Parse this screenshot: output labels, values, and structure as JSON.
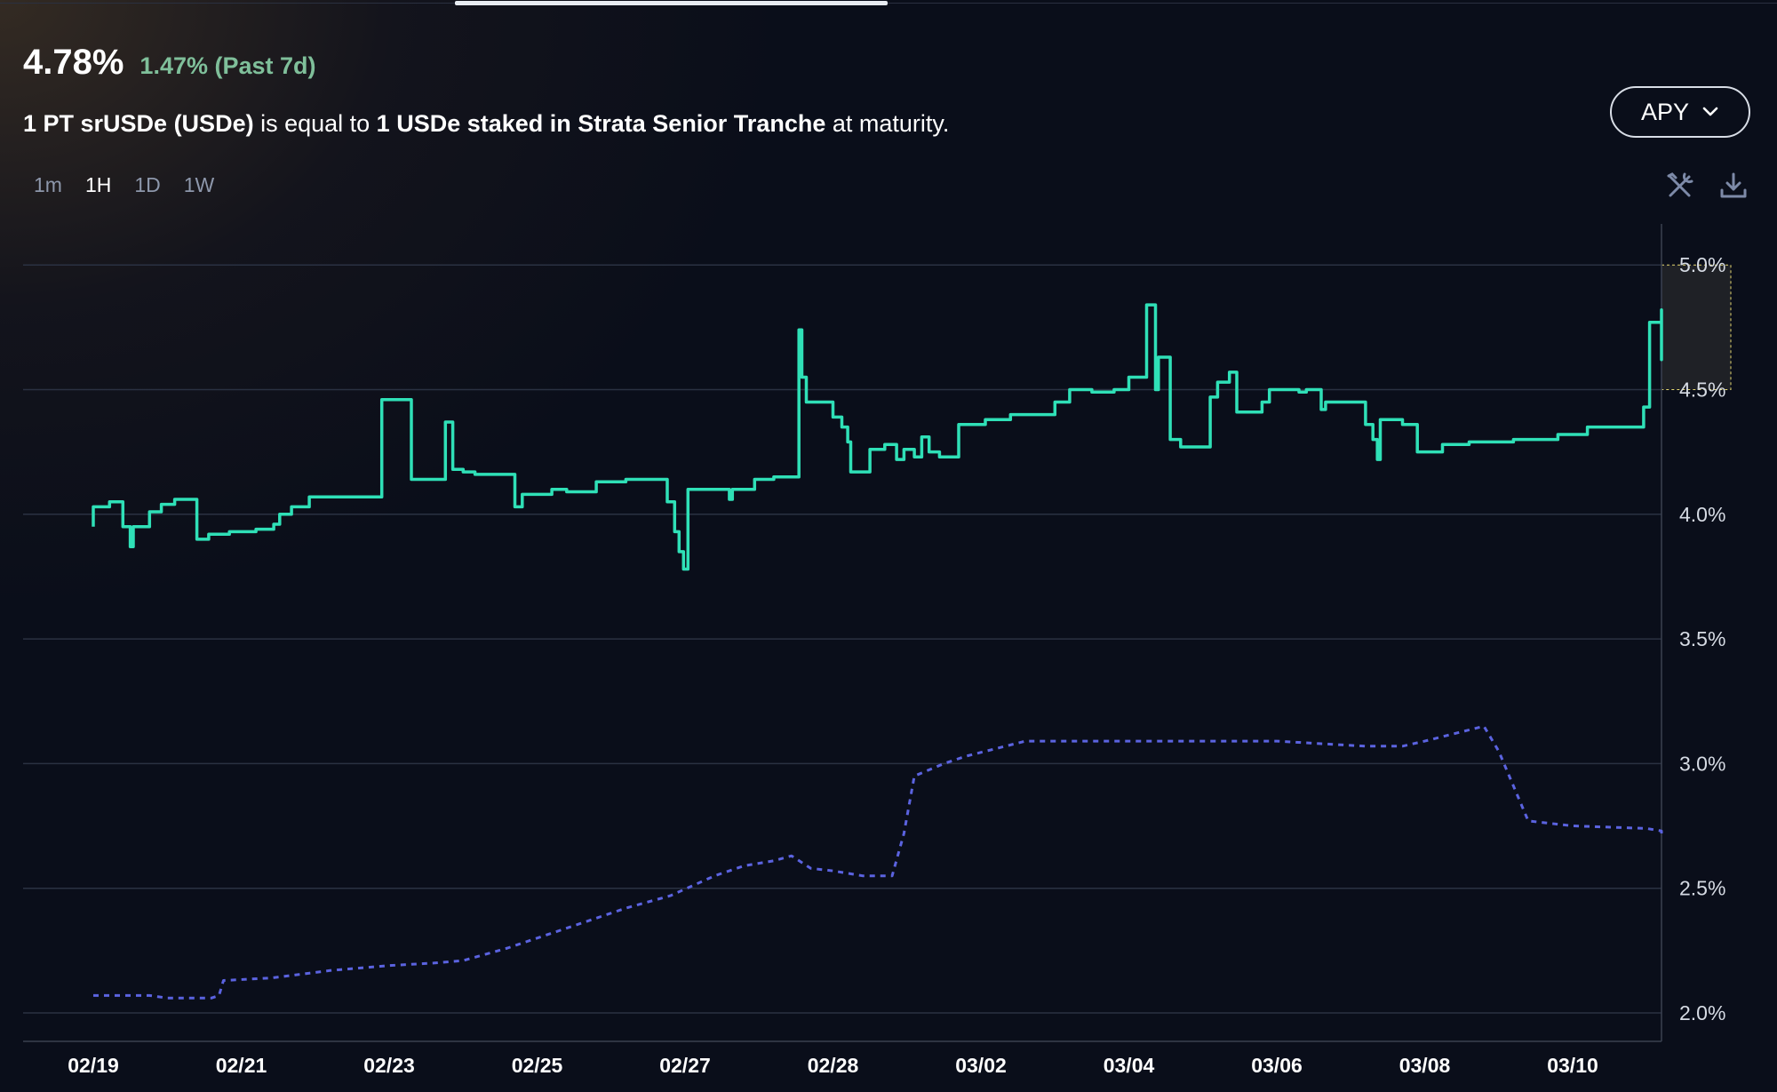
{
  "header": {
    "value": "4.78%",
    "change": "1.47% (Past 7d)"
  },
  "subtitle": {
    "part1": "1 PT srUSDe (USDe)",
    "part2": " is equal to ",
    "part3": "1 USDe staked in Strata Senior Tranche",
    "part4": " at maturity."
  },
  "metric_button": {
    "label": "APY",
    "icon": "chevron-down-icon"
  },
  "intervals": [
    "1m",
    "1H",
    "1D",
    "1W"
  ],
  "active_interval": "1H",
  "tools": {
    "settings_icon": "tools-icon",
    "download_icon": "download-icon"
  },
  "colors": {
    "implied_apy": "#2fe0b7",
    "underlying_apy": "#5b63e0",
    "background": "#0a0e1a"
  },
  "chart_data": {
    "type": "line",
    "y_ticks": [
      "2.0%",
      "2.5%",
      "3.0%",
      "3.5%",
      "4.0%",
      "4.5%",
      "5.0%"
    ],
    "ylim": [
      1.9,
      5.1
    ],
    "x_ticks": [
      "02/19",
      "02/21",
      "02/23",
      "02/25",
      "02/27",
      "02/28",
      "03/02",
      "03/04",
      "03/06",
      "03/08",
      "03/10"
    ],
    "grid": true,
    "highlight_band": [
      4.5,
      5.0
    ],
    "series": [
      {
        "style": "step-solid",
        "color": "#2fe0b7",
        "points": [
          [
            0.0,
            3.95
          ],
          [
            0.0,
            4.03
          ],
          [
            0.11,
            4.03
          ],
          [
            0.11,
            4.05
          ],
          [
            0.2,
            4.05
          ],
          [
            0.2,
            3.95
          ],
          [
            0.25,
            3.95
          ],
          [
            0.25,
            3.87
          ],
          [
            0.27,
            3.87
          ],
          [
            0.27,
            3.95
          ],
          [
            0.38,
            3.95
          ],
          [
            0.38,
            4.01
          ],
          [
            0.46,
            4.01
          ],
          [
            0.46,
            4.04
          ],
          [
            0.55,
            4.04
          ],
          [
            0.55,
            4.06
          ],
          [
            0.7,
            4.06
          ],
          [
            0.7,
            3.9
          ],
          [
            0.78,
            3.9
          ],
          [
            0.78,
            3.92
          ],
          [
            0.92,
            3.92
          ],
          [
            0.92,
            3.93
          ],
          [
            1.1,
            3.93
          ],
          [
            1.1,
            3.94
          ],
          [
            1.22,
            3.94
          ],
          [
            1.22,
            3.96
          ],
          [
            1.26,
            3.96
          ],
          [
            1.26,
            4.0
          ],
          [
            1.34,
            4.0
          ],
          [
            1.34,
            4.03
          ],
          [
            1.46,
            4.03
          ],
          [
            1.46,
            4.07
          ],
          [
            1.72,
            4.07
          ],
          [
            1.72,
            4.07
          ],
          [
            1.95,
            4.07
          ],
          [
            1.95,
            4.46
          ],
          [
            2.15,
            4.46
          ],
          [
            2.15,
            4.14
          ],
          [
            2.38,
            4.14
          ],
          [
            2.38,
            4.37
          ],
          [
            2.43,
            4.37
          ],
          [
            2.43,
            4.18
          ],
          [
            2.5,
            4.18
          ],
          [
            2.5,
            4.17
          ],
          [
            2.58,
            4.17
          ],
          [
            2.58,
            4.16
          ],
          [
            2.85,
            4.16
          ],
          [
            2.85,
            4.03
          ],
          [
            2.9,
            4.03
          ],
          [
            2.9,
            4.08
          ],
          [
            3.1,
            4.08
          ],
          [
            3.1,
            4.1
          ],
          [
            3.2,
            4.1
          ],
          [
            3.2,
            4.09
          ],
          [
            3.4,
            4.09
          ],
          [
            3.4,
            4.13
          ],
          [
            3.6,
            4.13
          ],
          [
            3.6,
            4.14
          ],
          [
            3.88,
            4.14
          ],
          [
            3.88,
            4.05
          ],
          [
            3.93,
            4.05
          ],
          [
            3.93,
            3.93
          ],
          [
            3.96,
            3.93
          ],
          [
            3.96,
            3.85
          ],
          [
            3.99,
            3.85
          ],
          [
            3.99,
            3.78
          ],
          [
            4.02,
            3.78
          ],
          [
            4.02,
            4.1
          ],
          [
            4.3,
            4.1
          ],
          [
            4.3,
            4.06
          ],
          [
            4.32,
            4.06
          ],
          [
            4.32,
            4.1
          ],
          [
            4.47,
            4.1
          ],
          [
            4.47,
            4.14
          ],
          [
            4.6,
            4.14
          ],
          [
            4.6,
            4.15
          ],
          [
            4.77,
            4.15
          ],
          [
            4.77,
            4.74
          ],
          [
            4.79,
            4.74
          ],
          [
            4.79,
            4.55
          ],
          [
            4.82,
            4.55
          ],
          [
            4.82,
            4.45
          ],
          [
            5.0,
            4.45
          ],
          [
            5.0,
            4.39
          ],
          [
            5.06,
            4.39
          ],
          [
            5.06,
            4.35
          ],
          [
            5.1,
            4.35
          ],
          [
            5.1,
            4.29
          ],
          [
            5.12,
            4.29
          ],
          [
            5.12,
            4.17
          ],
          [
            5.25,
            4.17
          ],
          [
            5.25,
            4.26
          ],
          [
            5.35,
            4.26
          ],
          [
            5.35,
            4.28
          ],
          [
            5.43,
            4.28
          ],
          [
            5.43,
            4.22
          ],
          [
            5.48,
            4.22
          ],
          [
            5.48,
            4.26
          ],
          [
            5.55,
            4.26
          ],
          [
            5.55,
            4.23
          ],
          [
            5.6,
            4.23
          ],
          [
            5.6,
            4.31
          ],
          [
            5.65,
            4.31
          ],
          [
            5.65,
            4.25
          ],
          [
            5.72,
            4.25
          ],
          [
            5.72,
            4.23
          ],
          [
            5.85,
            4.23
          ],
          [
            5.85,
            4.36
          ],
          [
            6.03,
            4.36
          ],
          [
            6.03,
            4.38
          ],
          [
            6.2,
            4.38
          ],
          [
            6.2,
            4.4
          ],
          [
            6.5,
            4.4
          ],
          [
            6.5,
            4.45
          ],
          [
            6.6,
            4.45
          ],
          [
            6.6,
            4.5
          ],
          [
            6.75,
            4.5
          ],
          [
            6.75,
            4.49
          ],
          [
            6.9,
            4.49
          ],
          [
            6.9,
            4.5
          ],
          [
            7.0,
            4.5
          ],
          [
            7.0,
            4.55
          ],
          [
            7.12,
            4.55
          ],
          [
            7.12,
            4.84
          ],
          [
            7.18,
            4.84
          ],
          [
            7.18,
            4.5
          ],
          [
            7.2,
            4.5
          ],
          [
            7.2,
            4.63
          ],
          [
            7.28,
            4.63
          ],
          [
            7.28,
            4.3
          ],
          [
            7.35,
            4.3
          ],
          [
            7.35,
            4.27
          ],
          [
            7.55,
            4.27
          ],
          [
            7.55,
            4.47
          ],
          [
            7.6,
            4.47
          ],
          [
            7.6,
            4.53
          ],
          [
            7.68,
            4.53
          ],
          [
            7.68,
            4.57
          ],
          [
            7.73,
            4.57
          ],
          [
            7.73,
            4.41
          ],
          [
            7.9,
            4.41
          ],
          [
            7.9,
            4.45
          ],
          [
            7.95,
            4.45
          ],
          [
            7.95,
            4.5
          ],
          [
            8.15,
            4.5
          ],
          [
            8.15,
            4.49
          ],
          [
            8.2,
            4.49
          ],
          [
            8.2,
            4.5
          ],
          [
            8.3,
            4.5
          ],
          [
            8.3,
            4.42
          ],
          [
            8.33,
            4.42
          ],
          [
            8.33,
            4.45
          ],
          [
            8.6,
            4.45
          ],
          [
            8.6,
            4.36
          ],
          [
            8.65,
            4.36
          ],
          [
            8.65,
            4.3
          ],
          [
            8.68,
            4.3
          ],
          [
            8.68,
            4.22
          ],
          [
            8.7,
            4.22
          ],
          [
            8.7,
            4.38
          ],
          [
            8.85,
            4.38
          ],
          [
            8.85,
            4.36
          ],
          [
            8.95,
            4.36
          ],
          [
            8.95,
            4.25
          ],
          [
            9.12,
            4.25
          ],
          [
            9.12,
            4.28
          ],
          [
            9.3,
            4.28
          ],
          [
            9.3,
            4.29
          ],
          [
            9.6,
            4.29
          ],
          [
            9.6,
            4.3
          ],
          [
            9.9,
            4.3
          ],
          [
            9.9,
            4.32
          ],
          [
            10.1,
            4.32
          ],
          [
            10.1,
            4.35
          ],
          [
            10.48,
            4.35
          ],
          [
            10.48,
            4.43
          ],
          [
            10.52,
            4.43
          ],
          [
            10.52,
            4.77
          ],
          [
            10.62,
            4.77
          ],
          [
            10.62,
            4.8
          ],
          [
            10.72,
            4.8
          ],
          [
            10.72,
            4.82
          ],
          [
            10.77,
            4.82
          ],
          [
            10.77,
            4.8
          ],
          [
            10.95,
            4.8
          ],
          [
            10.95,
            4.62
          ],
          [
            10.98,
            4.62
          ],
          [
            10.98,
            4.7
          ],
          [
            11.03,
            4.7
          ],
          [
            11.03,
            4.75
          ],
          [
            11.2,
            4.75
          ],
          [
            11.2,
            4.8
          ],
          [
            11.38,
            4.8
          ],
          [
            11.38,
            4.78
          ],
          [
            11.46,
            4.78
          ]
        ]
      },
      {
        "style": "dashed",
        "color": "#5b63e0",
        "points": [
          [
            0.0,
            2.07
          ],
          [
            0.38,
            2.07
          ],
          [
            0.5,
            2.06
          ],
          [
            0.8,
            2.06
          ],
          [
            0.85,
            2.07
          ],
          [
            0.88,
            2.13
          ],
          [
            1.2,
            2.14
          ],
          [
            1.6,
            2.17
          ],
          [
            2.0,
            2.19
          ],
          [
            2.3,
            2.2
          ],
          [
            2.5,
            2.21
          ],
          [
            2.8,
            2.26
          ],
          [
            3.2,
            2.34
          ],
          [
            3.6,
            2.42
          ],
          [
            3.9,
            2.47
          ],
          [
            4.2,
            2.55
          ],
          [
            4.4,
            2.59
          ],
          [
            4.6,
            2.61
          ],
          [
            4.72,
            2.63
          ],
          [
            4.85,
            2.58
          ],
          [
            5.0,
            2.57
          ],
          [
            5.2,
            2.55
          ],
          [
            5.4,
            2.55
          ],
          [
            5.48,
            2.72
          ],
          [
            5.55,
            2.95
          ],
          [
            5.75,
            3.0
          ],
          [
            5.9,
            3.03
          ],
          [
            6.1,
            3.06
          ],
          [
            6.3,
            3.09
          ],
          [
            6.7,
            3.09
          ],
          [
            7.2,
            3.09
          ],
          [
            7.7,
            3.09
          ],
          [
            8.0,
            3.09
          ],
          [
            8.3,
            3.08
          ],
          [
            8.6,
            3.07
          ],
          [
            8.85,
            3.07
          ],
          [
            9.0,
            3.09
          ],
          [
            9.2,
            3.12
          ],
          [
            9.4,
            3.15
          ],
          [
            9.5,
            3.05
          ],
          [
            9.7,
            2.77
          ],
          [
            10.0,
            2.75
          ],
          [
            10.5,
            2.74
          ],
          [
            11.0,
            2.73
          ],
          [
            11.46,
            2.72
          ]
        ]
      }
    ]
  }
}
